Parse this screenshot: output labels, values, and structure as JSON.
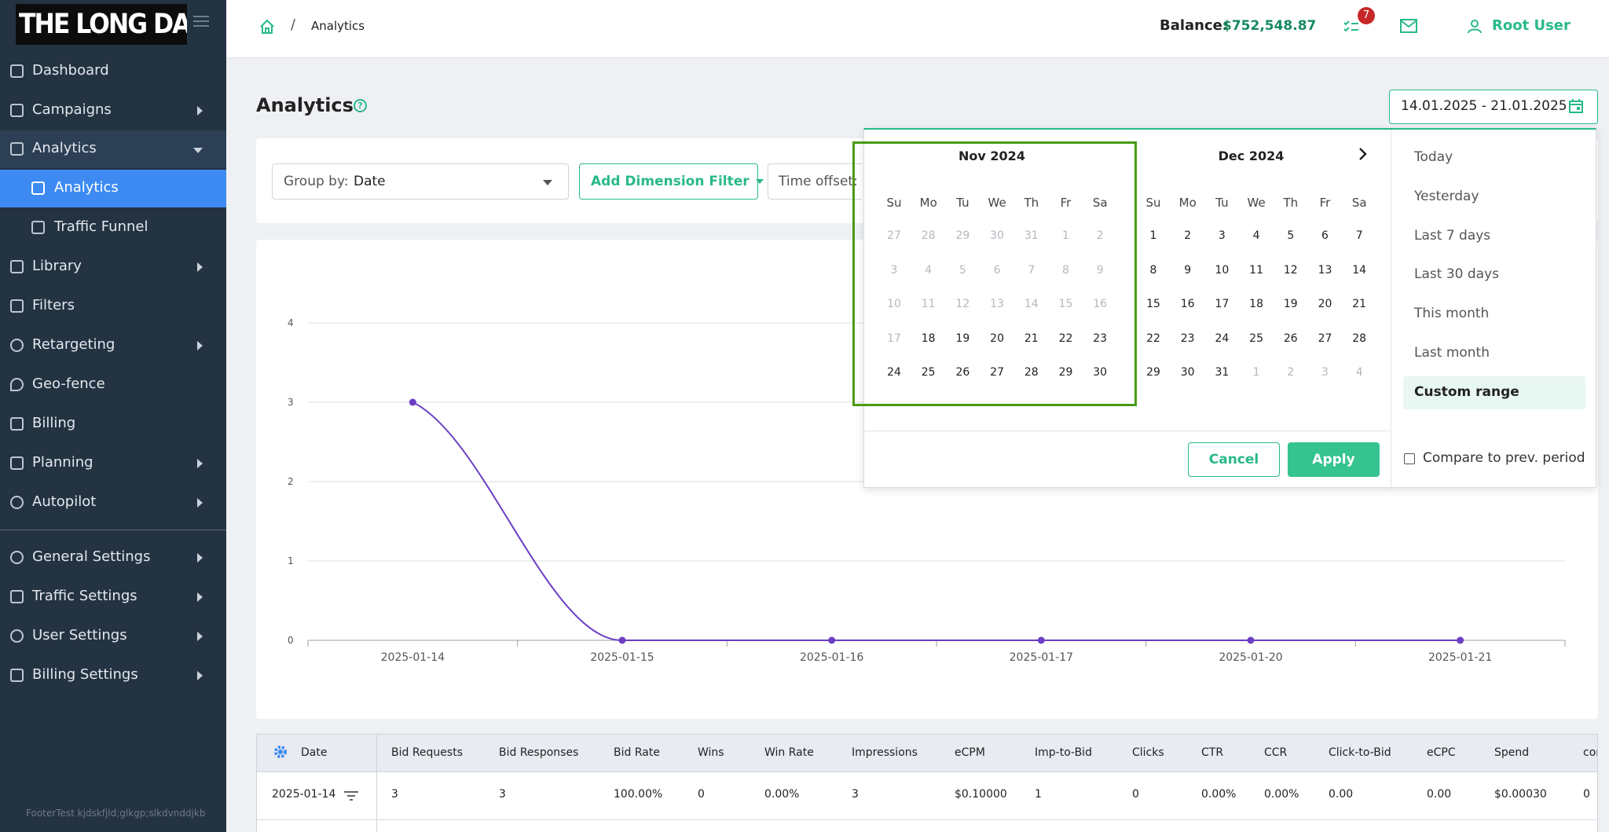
{
  "app": {
    "logo_text": "THE LONG DARK"
  },
  "sidebar": {
    "items": [
      {
        "label": "Dashboard"
      },
      {
        "label": "Campaigns"
      },
      {
        "label": "Analytics"
      },
      {
        "label": "Analytics"
      },
      {
        "label": "Traffic Funnel"
      },
      {
        "label": "Library"
      },
      {
        "label": "Filters"
      },
      {
        "label": "Retargeting"
      },
      {
        "label": "Geo-fence"
      },
      {
        "label": "Billing"
      },
      {
        "label": "Planning"
      },
      {
        "label": "Autopilot"
      },
      {
        "label": "General Settings"
      },
      {
        "label": "Traffic Settings"
      },
      {
        "label": "User Settings"
      },
      {
        "label": "Billing Settings"
      }
    ],
    "footer": "FooterTest kjdskfjld;glkgp;slkdvnddjkb"
  },
  "topbar": {
    "breadcrumb_sep": "/",
    "breadcrumb_current": "Analytics",
    "balance_label": "Balance:",
    "balance_value": "$752,548.87",
    "tasks_badge": "7",
    "user_name": "Root User"
  },
  "page": {
    "title": "Analytics",
    "help": "?"
  },
  "filters": {
    "group_by_label": "Group by:",
    "group_by_value": "Date",
    "add_dimension": "Add Dimension Filter",
    "time_offset": "Time offset: U"
  },
  "date_range": {
    "value": "14.01.2025 - 21.01.2025"
  },
  "picker": {
    "weekdays": [
      "Su",
      "Mo",
      "Tu",
      "We",
      "Th",
      "Fr",
      "Sa"
    ],
    "months": [
      {
        "title": "Nov 2024",
        "weeks": [
          [
            "27",
            "28",
            "29",
            "30",
            "31",
            "1",
            "2"
          ],
          [
            "3",
            "4",
            "5",
            "6",
            "7",
            "8",
            "9"
          ],
          [
            "10",
            "11",
            "12",
            "13",
            "14",
            "15",
            "16"
          ],
          [
            "17",
            "18",
            "19",
            "20",
            "21",
            "22",
            "23"
          ],
          [
            "24",
            "25",
            "26",
            "27",
            "28",
            "29",
            "30"
          ]
        ],
        "muted_until": 17
      },
      {
        "title": "Dec 2024",
        "weeks": [
          [
            "1",
            "2",
            "3",
            "4",
            "5",
            "6",
            "7"
          ],
          [
            "8",
            "9",
            "10",
            "11",
            "12",
            "13",
            "14"
          ],
          [
            "15",
            "16",
            "17",
            "18",
            "19",
            "20",
            "21"
          ],
          [
            "22",
            "23",
            "24",
            "25",
            "26",
            "27",
            "28"
          ],
          [
            "29",
            "30",
            "31",
            "1",
            "2",
            "3",
            "4"
          ]
        ],
        "muted_after": 31
      }
    ],
    "ranges": [
      "Today",
      "Yesterday",
      "Last 7 days",
      "Last 30 days",
      "This month",
      "Last month",
      "Custom range"
    ],
    "selected_range": "Custom range",
    "cancel": "Cancel",
    "apply": "Apply",
    "compare": "Compare to prev. period"
  },
  "chart_data": {
    "type": "line",
    "categories": [
      "2025-01-14",
      "2025-01-15",
      "2025-01-16",
      "2025-01-17",
      "2025-01-20",
      "2025-01-21"
    ],
    "values": [
      3,
      0,
      0,
      0,
      0,
      0
    ],
    "y_ticks": [
      "0",
      "1",
      "2",
      "3",
      "4"
    ],
    "ylim": [
      0,
      4
    ],
    "grid": true,
    "line_color": "#6b3fc4"
  },
  "table": {
    "headers": [
      "Date",
      "Bid Requests",
      "Bid Responses",
      "Bid Rate",
      "Wins",
      "Win Rate",
      "Impressions",
      "eCPM",
      "Imp-to-Bid",
      "Clicks",
      "CTR",
      "CCR",
      "Click-to-Bid",
      "eCPC",
      "Spend",
      "comp"
    ],
    "rows": [
      [
        "2025-01-14",
        "3",
        "3",
        "100.00%",
        "0",
        "0.00%",
        "3",
        "$0.10000",
        "1",
        "0",
        "0.00%",
        "0.00%",
        "0.00",
        "0.00",
        "$0.00030",
        "0"
      ]
    ]
  },
  "colors": {
    "accent": "#28b98b",
    "sidebar": "#243342",
    "active": "#3d8bf2",
    "highlight": "#4a9a16"
  }
}
